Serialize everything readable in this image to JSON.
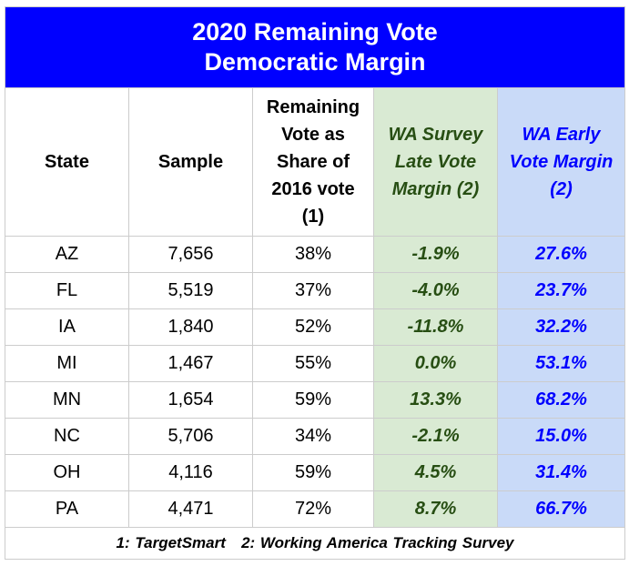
{
  "chart_data": {
    "type": "table",
    "title": "2020 Remaining Vote Democratic Margin",
    "title_lines": [
      "2020 Remaining Vote",
      "Democratic Margin"
    ],
    "columns": [
      "State",
      "Sample",
      "Remaining Vote as Share of 2016 vote (1)",
      "WA Survey Late Vote Margin (2)",
      "WA Early Vote Margin (2)"
    ],
    "rows": [
      [
        "AZ",
        "7,656",
        "38%",
        "-1.9%",
        "27.6%"
      ],
      [
        "FL",
        "5,519",
        "37%",
        "-4.0%",
        "23.7%"
      ],
      [
        "IA",
        "1,840",
        "52%",
        "-11.8%",
        "32.2%"
      ],
      [
        "MI",
        "1,467",
        "55%",
        "0.0%",
        "53.1%"
      ],
      [
        "MN",
        "1,654",
        "59%",
        "13.3%",
        "68.2%"
      ],
      [
        "NC",
        "5,706",
        "34%",
        "-2.1%",
        "15.0%"
      ],
      [
        "OH",
        "4,116",
        "59%",
        "4.5%",
        "31.4%"
      ],
      [
        "PA",
        "4,471",
        "72%",
        "8.7%",
        "66.7%"
      ]
    ],
    "footnote": "1: TargetSmart   2: Working America Tracking Survey"
  },
  "colors": {
    "title_bg": "#0000ff",
    "green_bg": "#d9ead3",
    "green_text": "#274e13",
    "blue_bg": "#c9daf8",
    "blue_text": "#0000ff"
  }
}
